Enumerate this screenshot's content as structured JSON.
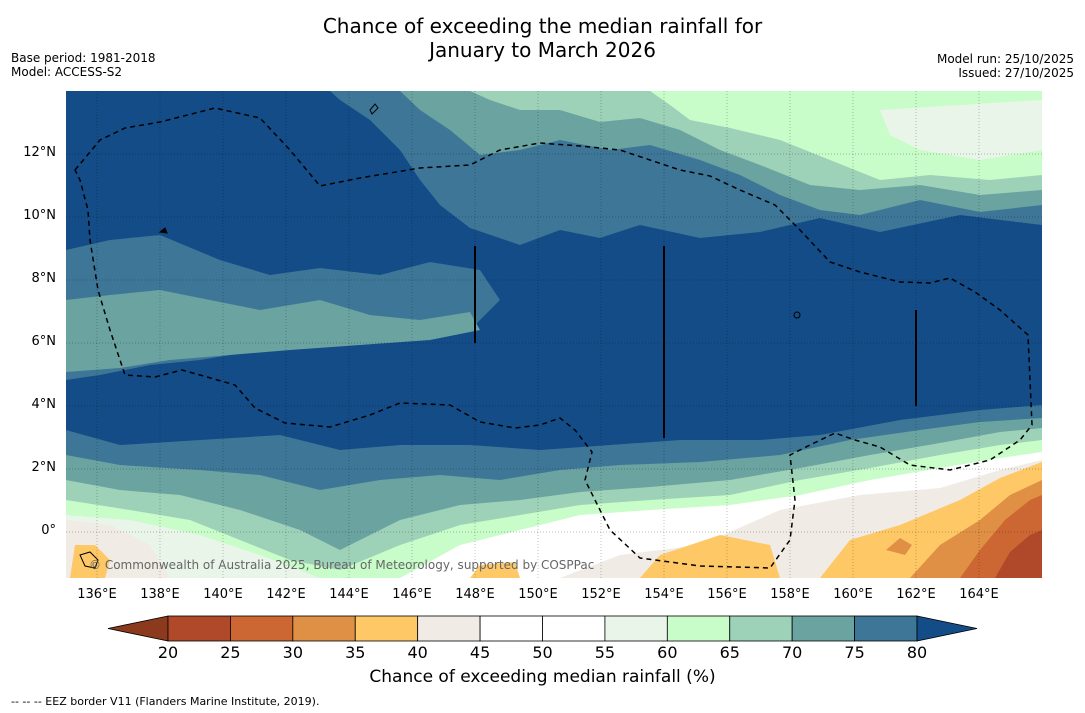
{
  "title": {
    "line1": "Chance of exceeding the median rainfall for",
    "line2": "January to March 2026"
  },
  "meta": {
    "base_period": "Base period: 1981-2018",
    "model": "Model: ACCESS-S2",
    "model_run": "Model run: 25/10/2025",
    "issued": "Issued: 27/10/2025"
  },
  "map": {
    "lat_labels": [
      "12°N",
      "10°N",
      "8°N",
      "6°N",
      "4°N",
      "2°N",
      "0°"
    ],
    "lon_labels": [
      "136°E",
      "138°E",
      "140°E",
      "142°E",
      "144°E",
      "146°E",
      "148°E",
      "150°E",
      "152°E",
      "154°E",
      "156°E",
      "158°E",
      "160°E",
      "162°E",
      "164°E"
    ],
    "copyright": "© Commonwealth of Australia 2025, Bureau of Meteorology, supported by COSPPac"
  },
  "colorbar": {
    "ticks": [
      "20",
      "25",
      "30",
      "35",
      "40",
      "45",
      "50",
      "55",
      "60",
      "65",
      "70",
      "75",
      "80"
    ],
    "colors": [
      "#8b3a1e",
      "#b0492a",
      "#cc6633",
      "#e09044",
      "#fdc865",
      "#f0ebe5",
      "#ffffff",
      "#ffffff",
      "#eaf5ea",
      "#c8fcc8",
      "#9dd1b8",
      "#6aa3a0",
      "#3e7697",
      "#134c87"
    ],
    "title": "Chance of exceeding median rainfall (%)"
  },
  "footer": {
    "legend": "--  --  -- EEZ border V11 (Flanders Marine Institute, 2019)."
  }
}
